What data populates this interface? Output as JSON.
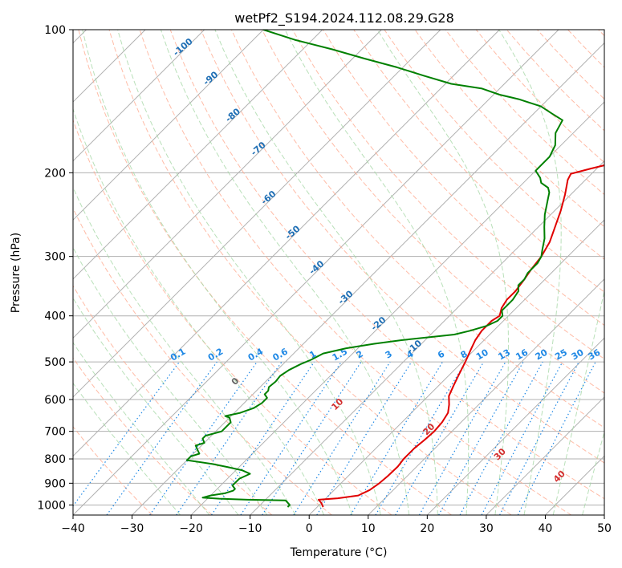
{
  "chart_data": {
    "type": "line",
    "chart_kind": "skew-T log-P diagram",
    "title": "wetPf2_S194.2024.112.08.29.G28",
    "xlabel": "Temperature (°C)",
    "ylabel": "Pressure (hPa)",
    "xlim": [
      -40,
      50
    ],
    "ylim": [
      1050,
      100
    ],
    "y_scale": "log",
    "x_ticks": [
      "−40",
      "−30",
      "−20",
      "−10",
      "0",
      "10",
      "20",
      "30",
      "40",
      "50"
    ],
    "y_ticks": [
      "100",
      "200",
      "300",
      "400",
      "500",
      "600",
      "700",
      "800",
      "900",
      "1000"
    ],
    "grid": true,
    "series": [
      {
        "role": "temperature",
        "color": "#e00000",
        "points": [
          [
            1,
            1010
          ],
          [
            0,
            990
          ],
          [
            -1,
            975
          ],
          [
            2,
            968
          ],
          [
            5,
            955
          ],
          [
            6,
            930
          ],
          [
            6.5,
            900
          ],
          [
            6.7,
            870
          ],
          [
            6.8,
            830
          ],
          [
            6.5,
            800
          ],
          [
            6.5,
            760
          ],
          [
            6.8,
            730
          ],
          [
            7,
            700
          ],
          [
            6.8,
            670
          ],
          [
            6.2,
            640
          ],
          [
            5,
            615
          ],
          [
            3.5,
            590
          ],
          [
            2.5,
            560
          ],
          [
            1.5,
            530
          ],
          [
            0.5,
            500
          ],
          [
            -0.7,
            470
          ],
          [
            -1.5,
            450
          ],
          [
            -2,
            430
          ],
          [
            -2,
            410
          ],
          [
            -1.5,
            400
          ],
          [
            -2.5,
            385
          ],
          [
            -3,
            370
          ],
          [
            -3,
            355
          ],
          [
            -3.5,
            335
          ],
          [
            -4,
            320
          ],
          [
            -4.5,
            300
          ],
          [
            -5.5,
            280
          ],
          [
            -7,
            262
          ],
          [
            -9,
            240
          ],
          [
            -11,
            222
          ],
          [
            -13,
            207
          ],
          [
            -13.5,
            201
          ],
          [
            -11,
            196
          ],
          [
            -7,
            189
          ],
          [
            -3,
            181
          ],
          [
            1,
            172
          ],
          [
            5,
            165
          ],
          [
            8,
            160
          ],
          [
            11,
            154
          ],
          [
            13,
            150
          ],
          [
            15,
            145
          ],
          [
            16.5,
            140
          ],
          [
            17.5,
            136
          ],
          [
            19,
            133
          ],
          [
            20,
            130
          ],
          [
            21,
            126
          ],
          [
            22,
            122
          ],
          [
            22.5,
            118
          ],
          [
            23.5,
            115
          ],
          [
            24.3,
            113
          ],
          [
            25,
            112
          ],
          [
            27,
            109
          ],
          [
            29,
            105
          ],
          [
            31,
            100
          ]
        ]
      },
      {
        "role": "dewpoint",
        "color": "#008000",
        "points": [
          [
            -5,
            1010
          ],
          [
            -5,
            1000
          ],
          [
            -6,
            985
          ],
          [
            -6.5,
            978
          ],
          [
            -13,
            975
          ],
          [
            -18,
            970
          ],
          [
            -21,
            965
          ],
          [
            -20,
            955
          ],
          [
            -18,
            945
          ],
          [
            -17,
            933
          ],
          [
            -17,
            925
          ],
          [
            -18,
            910
          ],
          [
            -18,
            900
          ],
          [
            -18,
            880
          ],
          [
            -17,
            860
          ],
          [
            -19,
            845
          ],
          [
            -22,
            832
          ],
          [
            -25,
            820
          ],
          [
            -30,
            805
          ],
          [
            -30,
            790
          ],
          [
            -29,
            780
          ],
          [
            -30,
            765
          ],
          [
            -31,
            750
          ],
          [
            -30,
            740
          ],
          [
            -31,
            725
          ],
          [
            -31,
            715
          ],
          [
            -29,
            700
          ],
          [
            -29,
            685
          ],
          [
            -29,
            670
          ],
          [
            -30,
            655
          ],
          [
            -31,
            650
          ],
          [
            -29,
            640
          ],
          [
            -27.5,
            625
          ],
          [
            -27,
            610
          ],
          [
            -27,
            595
          ],
          [
            -28,
            585
          ],
          [
            -28,
            575
          ],
          [
            -28.5,
            565
          ],
          [
            -28.3,
            550
          ],
          [
            -28.5,
            535
          ],
          [
            -28,
            520
          ],
          [
            -27,
            505
          ],
          [
            -26,
            495
          ],
          [
            -25,
            480
          ],
          [
            -22,
            468
          ],
          [
            -18,
            458
          ],
          [
            -14,
            450
          ],
          [
            -10,
            444
          ],
          [
            -6,
            438
          ],
          [
            -4,
            430
          ],
          [
            -2,
            420
          ],
          [
            -1,
            410
          ],
          [
            -1,
            400
          ],
          [
            -2,
            390
          ],
          [
            -2,
            370
          ],
          [
            -2.5,
            355
          ],
          [
            -3.5,
            345
          ],
          [
            -3.5,
            335
          ],
          [
            -4,
            325
          ],
          [
            -4,
            310
          ],
          [
            -4.5,
            300
          ],
          [
            -5.5,
            290
          ],
          [
            -7,
            275
          ],
          [
            -9,
            260
          ],
          [
            -11,
            245
          ],
          [
            -13,
            228
          ],
          [
            -14,
            220
          ],
          [
            -15,
            215
          ],
          [
            -17,
            210
          ],
          [
            -18,
            205
          ],
          [
            -20,
            198
          ],
          [
            -20,
            192
          ],
          [
            -20,
            185
          ],
          [
            -21,
            175
          ],
          [
            -23,
            165
          ],
          [
            -24,
            155
          ],
          [
            -27,
            150
          ],
          [
            -30,
            145
          ],
          [
            -35,
            140
          ],
          [
            -39,
            137
          ],
          [
            -43,
            133
          ],
          [
            -49,
            130
          ],
          [
            -55,
            125
          ],
          [
            -61,
            120
          ],
          [
            -68,
            115
          ],
          [
            -75,
            110
          ],
          [
            -83,
            105
          ],
          [
            -90,
            100
          ]
        ]
      }
    ],
    "dry_adiabat_labels": [
      "-100",
      "-90",
      "-80",
      "-70",
      "-60",
      "-50",
      "-40",
      "-30",
      "-20",
      "-10"
    ],
    "moist_adiabat_labels": [
      "0",
      "10",
      "20",
      "30",
      "40"
    ],
    "mixing_ratio_labels": [
      "0.1",
      "0.2",
      "0.4",
      "0.6",
      "1",
      "1.5",
      "2",
      "3",
      "4",
      "6",
      "8",
      "10",
      "13",
      "16",
      "20",
      "25",
      "30",
      "36"
    ],
    "colors": {
      "isotherm": "#b0b0b0",
      "isobar": "#b0b0b0",
      "dry_adiabat": "#ffab91",
      "moist_adiabat": "#a8d8a8",
      "mixing_ratio": "#1e88e5",
      "dry_label": "#1f6fb5",
      "moist_label": "#d32f2f"
    }
  }
}
